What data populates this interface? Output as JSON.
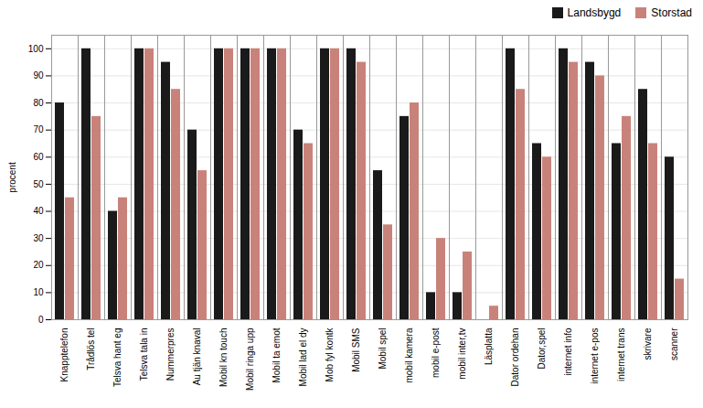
{
  "chart_data": {
    "type": "bar",
    "categories": [
      "Knapptelefon",
      "Trådlös tel",
      "Telsva hant eg",
      "Telsva tala in",
      "Nummerpres",
      "Au tjän knaval",
      "Mobil kn touch",
      "Mobil ringa upp",
      "Mobil ta emot",
      "Mobil lad el dy",
      "Mob fyl kontk",
      "Mobil SMS",
      "Mobil spel",
      "mobil kamera",
      "mobil e-post",
      "mobil inter,tv",
      "Läsplatta",
      "Dator ordehan",
      "Dator,spel",
      "internet info",
      "internet e-pos",
      "internet trans",
      "skrivare",
      "scanner"
    ],
    "series": [
      {
        "name": "Landsbygd",
        "color": "#1a1a1a",
        "values": [
          80,
          100,
          40,
          100,
          95,
          70,
          100,
          100,
          100,
          70,
          100,
          100,
          55,
          75,
          10,
          10,
          0,
          100,
          65,
          100,
          95,
          65,
          85,
          60
        ]
      },
      {
        "name": "Storstad",
        "color": "#c9827a",
        "values": [
          45,
          75,
          45,
          100,
          85,
          55,
          100,
          100,
          100,
          65,
          100,
          95,
          35,
          80,
          30,
          25,
          5,
          85,
          60,
          95,
          90,
          75,
          65,
          15
        ]
      }
    ],
    "ylabel": "procent",
    "ylim": [
      0,
      105
    ],
    "yticks": [
      0,
      10,
      20,
      30,
      40,
      50,
      60,
      70,
      80,
      90,
      100
    ],
    "grid": true,
    "legend": "upper right"
  }
}
